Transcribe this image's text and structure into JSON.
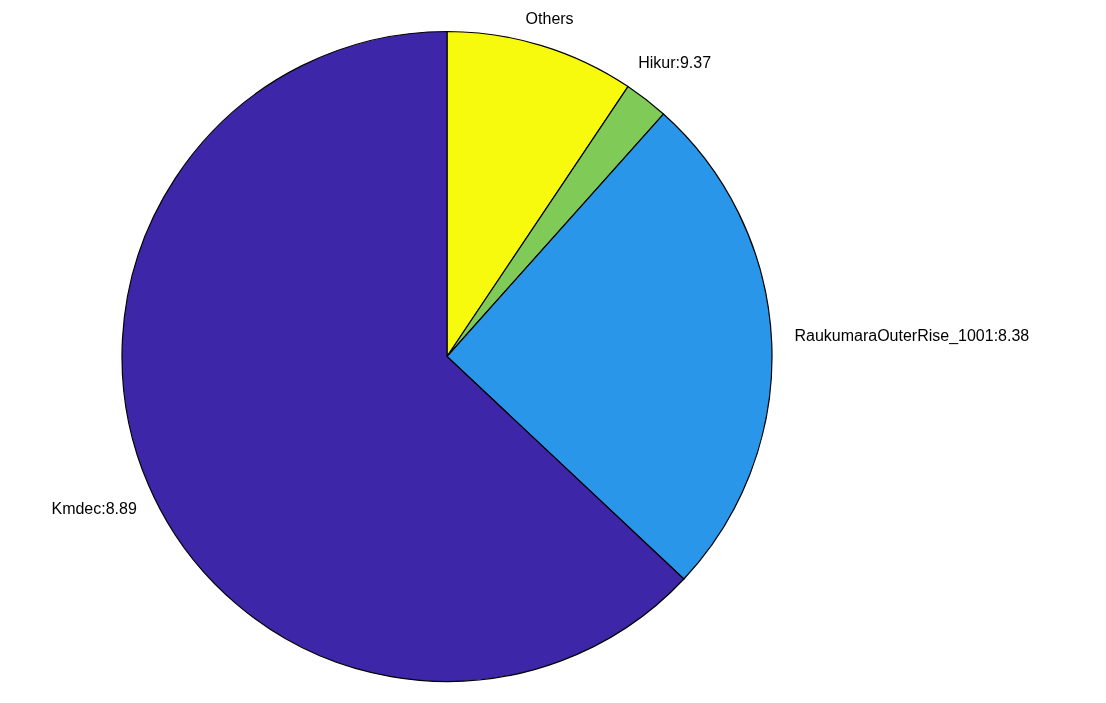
{
  "chart_data": {
    "type": "pie",
    "categories": [
      "Others",
      "Hikur:9.37",
      "RaukumaraOuterRise_1001:8.38",
      "Kmdec:8.89"
    ],
    "values": [
      9.4,
      2.2,
      25.4,
      63.0
    ],
    "colors": [
      "#f8fa0d",
      "#80cb58",
      "#2a96e9",
      "#3e26a8"
    ]
  }
}
